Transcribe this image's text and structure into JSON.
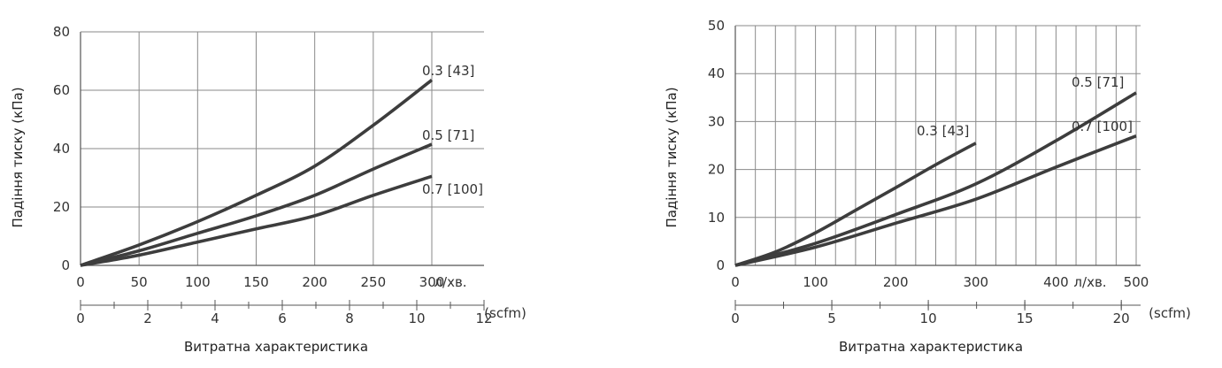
{
  "chart_data": [
    {
      "type": "line",
      "title": "",
      "ylabel": "Падіння тиску (кПа)",
      "xlabel": "Витратна характеристика",
      "x_unit": "л/хв.",
      "x2_unit": "(scfm)",
      "xlim": [
        0,
        300
      ],
      "ylim": [
        0,
        80
      ],
      "x_ticks": [
        0,
        50,
        100,
        150,
        200,
        250,
        300
      ],
      "y_ticks": [
        0,
        20,
        40,
        60,
        80
      ],
      "x2_ticks": [
        0,
        2,
        4,
        6,
        8,
        10,
        12
      ],
      "grid": true,
      "series": [
        {
          "name": "0.3 [43]",
          "x": [
            0,
            50,
            100,
            150,
            200,
            250,
            300
          ],
          "y": [
            0,
            7,
            15,
            24,
            34,
            48,
            63.5
          ]
        },
        {
          "name": "0.5 [71]",
          "x": [
            0,
            50,
            100,
            150,
            200,
            250,
            300
          ],
          "y": [
            0,
            5,
            11,
            17,
            24,
            33,
            41.5
          ]
        },
        {
          "name": "0.7 [100]",
          "x": [
            0,
            50,
            100,
            150,
            200,
            250,
            300
          ],
          "y": [
            0,
            3.5,
            8,
            12.5,
            17,
            24,
            30.5
          ]
        }
      ]
    },
    {
      "type": "line",
      "title": "",
      "ylabel": "Падіння тиску (кПа)",
      "xlabel": "Витратна характеристика",
      "x_unit": "л/хв.",
      "x2_unit": "(scfm)",
      "xlim": [
        0,
        500
      ],
      "ylim": [
        0,
        50
      ],
      "x_ticks": [
        0,
        100,
        200,
        300,
        400,
        500
      ],
      "y_ticks": [
        0,
        10,
        20,
        30,
        40,
        50
      ],
      "x2_ticks": [
        0,
        5,
        10,
        15,
        20
      ],
      "grid": true,
      "series": [
        {
          "name": "0.3 [43]",
          "x": [
            0,
            50,
            100,
            150,
            200,
            250,
            300
          ],
          "y": [
            0,
            2.8,
            6.8,
            11.5,
            16.2,
            21,
            25.5
          ]
        },
        {
          "name": "0.5 [71]",
          "x": [
            0,
            100,
            200,
            300,
            400,
            500
          ],
          "y": [
            0,
            4.6,
            10.6,
            17,
            26,
            36
          ]
        },
        {
          "name": "0.7 [100]",
          "x": [
            0,
            100,
            200,
            300,
            400,
            500
          ],
          "y": [
            0,
            3.8,
            8.8,
            13.8,
            20.5,
            27
          ]
        }
      ]
    }
  ]
}
